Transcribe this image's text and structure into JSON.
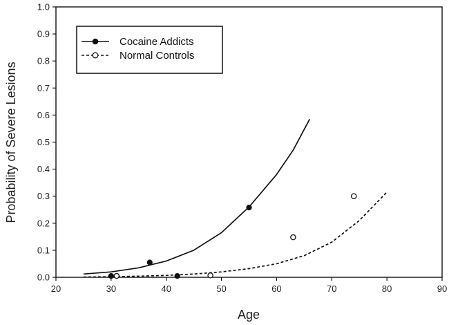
{
  "chart_data": {
    "type": "scatter",
    "title": "",
    "xlabel": "Age",
    "ylabel": "Probability of Severe Lesions",
    "xlim": [
      20,
      90
    ],
    "ylim": [
      0,
      1.0
    ],
    "x_ticks": [
      20,
      30,
      40,
      50,
      60,
      70,
      80,
      90
    ],
    "y_ticks": [
      0.0,
      0.1,
      0.2,
      0.3,
      0.4,
      0.5,
      0.6,
      0.7,
      0.8,
      0.9,
      1.0
    ],
    "grid": false,
    "legend_position": "top-left",
    "series": [
      {
        "name": "Cocaine Addicts",
        "marker": "filled-circle",
        "line_style": "solid",
        "color": "#111111",
        "points": [
          {
            "x": 30,
            "y": 0.005
          },
          {
            "x": 37,
            "y": 0.055
          },
          {
            "x": 42,
            "y": 0.005
          },
          {
            "x": 55,
            "y": 0.258
          }
        ],
        "fit_curve": [
          {
            "x": 25,
            "y": 0.012
          },
          {
            "x": 30,
            "y": 0.02
          },
          {
            "x": 35,
            "y": 0.035
          },
          {
            "x": 40,
            "y": 0.06
          },
          {
            "x": 45,
            "y": 0.1
          },
          {
            "x": 50,
            "y": 0.165
          },
          {
            "x": 55,
            "y": 0.26
          },
          {
            "x": 60,
            "y": 0.38
          },
          {
            "x": 63,
            "y": 0.47
          },
          {
            "x": 66,
            "y": 0.585
          }
        ]
      },
      {
        "name": "Normal Controls",
        "marker": "open-circle",
        "line_style": "dashed",
        "color": "#111111",
        "points": [
          {
            "x": 31,
            "y": 0.005
          },
          {
            "x": 48,
            "y": 0.007
          },
          {
            "x": 63,
            "y": 0.148
          },
          {
            "x": 74,
            "y": 0.3
          }
        ],
        "fit_curve": [
          {
            "x": 25,
            "y": 0.001
          },
          {
            "x": 30,
            "y": 0.002
          },
          {
            "x": 35,
            "y": 0.004
          },
          {
            "x": 40,
            "y": 0.007
          },
          {
            "x": 45,
            "y": 0.012
          },
          {
            "x": 50,
            "y": 0.02
          },
          {
            "x": 55,
            "y": 0.032
          },
          {
            "x": 60,
            "y": 0.05
          },
          {
            "x": 65,
            "y": 0.08
          },
          {
            "x": 70,
            "y": 0.13
          },
          {
            "x": 75,
            "y": 0.21
          },
          {
            "x": 80,
            "y": 0.315
          }
        ]
      }
    ]
  }
}
